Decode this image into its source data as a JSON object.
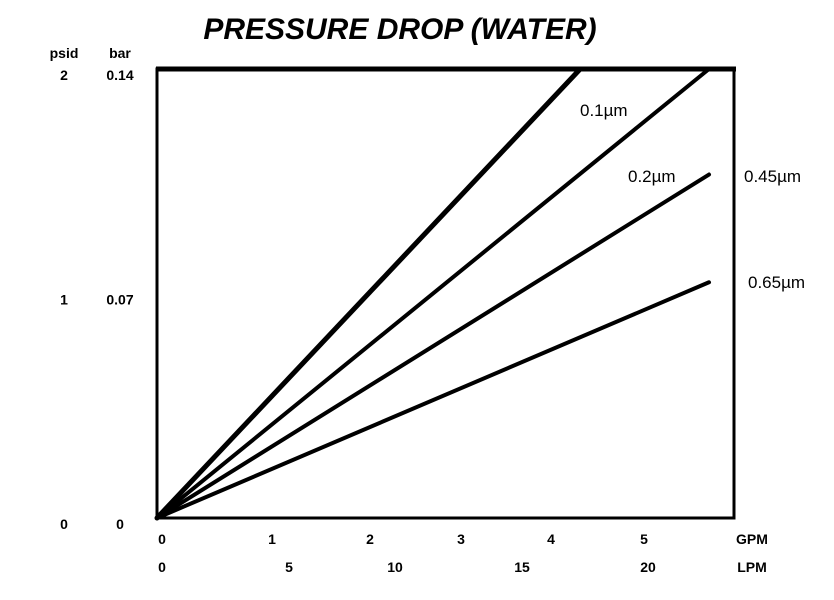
{
  "chart_data": {
    "type": "line",
    "title": "PRESSURE DROP (WATER)",
    "y_units": {
      "left": "psid",
      "right": "bar"
    },
    "x_units": {
      "top": "GPM",
      "bottom": "LPM"
    },
    "y_ticks": [
      {
        "psid": "2",
        "bar": "0.14",
        "value": 2
      },
      {
        "psid": "1",
        "bar": "0.07",
        "value": 1
      },
      {
        "psid": "0",
        "bar": "0",
        "value": 0
      }
    ],
    "x_gpm_ticks": [
      {
        "label": "0",
        "value": 0
      },
      {
        "label": "1",
        "value": 1
      },
      {
        "label": "2",
        "value": 2
      },
      {
        "label": "3",
        "value": 3
      },
      {
        "label": "4",
        "value": 4
      },
      {
        "label": "5",
        "value": 5
      }
    ],
    "x_lpm_ticks": [
      {
        "label": "0",
        "value": 0
      },
      {
        "label": "5",
        "value": 5
      },
      {
        "label": "10",
        "value": 10
      },
      {
        "label": "15",
        "value": 15
      },
      {
        "label": "20",
        "value": 20
      }
    ],
    "xlim_gpm": [
      0,
      6
    ],
    "ylim_psid": [
      0,
      2
    ],
    "series": [
      {
        "name": "0.1µm",
        "x": [
          0,
          4.6
        ],
        "y": [
          0,
          2.0
        ]
      },
      {
        "name": "0.2µm",
        "x": [
          0,
          6.0
        ],
        "y": [
          0,
          2.0
        ]
      },
      {
        "name": "0.45µm",
        "x": [
          0,
          6.0
        ],
        "y": [
          0,
          1.53
        ]
      },
      {
        "name": "0.65µm",
        "x": [
          0,
          6.0
        ],
        "y": [
          0,
          1.05
        ]
      }
    ],
    "grid": false,
    "legend": "none"
  }
}
